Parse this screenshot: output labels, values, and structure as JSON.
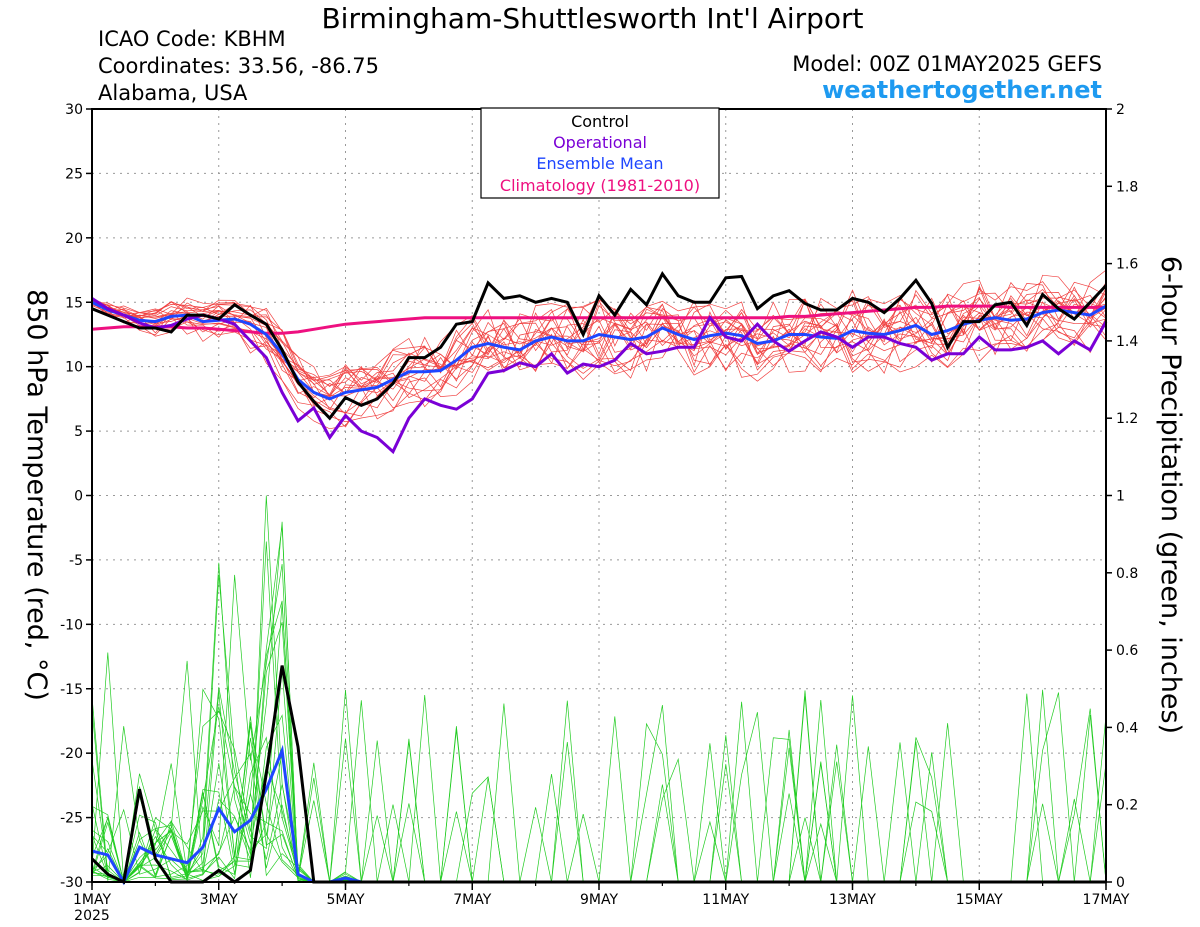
{
  "header": {
    "title": "Birmingham-Shuttlesworth Int'l Airport",
    "icao": "ICAO Code: KBHM",
    "coordinates": "Coordinates: 33.56, -86.75",
    "region": "Alabama, USA",
    "model": "Model: 00Z 01MAY2025 GEFS",
    "site": "weathertogether.net"
  },
  "colors": {
    "control": "#000000",
    "operational": "#7a00d6",
    "mean": "#1e46ff",
    "climatology": "#ee1080",
    "temp_members": "#f04040",
    "precip_members": "#22cc22",
    "site": "#1e9af0"
  },
  "chart_data": {
    "type": "line",
    "y_left": {
      "label": "850 hPa Temperature (red, °C)",
      "range": [
        -30,
        30
      ],
      "ticks": [
        -30,
        -25,
        -20,
        -15,
        -10,
        -5,
        0,
        5,
        10,
        15,
        20,
        25,
        30
      ]
    },
    "y_right": {
      "label": "6-hour Precipitation (green, inches)",
      "range": [
        0,
        2
      ],
      "ticks": [
        "0",
        "0.2",
        "0.4",
        "0.6",
        "0.8",
        "1",
        "1.2",
        "1.4",
        "1.6",
        "1.8",
        "2"
      ]
    },
    "x": {
      "range_days": [
        0,
        16
      ],
      "tick_labels": [
        "1MAY",
        "3MAY",
        "5MAY",
        "7MAY",
        "9MAY",
        "11MAY",
        "13MAY",
        "15MAY",
        "17MAY"
      ],
      "year_label": "2025"
    },
    "grid": true,
    "legend": {
      "placement": "top-center",
      "entries": [
        {
          "label": "Control",
          "color": "#000000"
        },
        {
          "label": "Operational",
          "color": "#7a00d6"
        },
        {
          "label": "Ensemble Mean",
          "color": "#1e46ff"
        },
        {
          "label": "Climatology (1981-2010)",
          "color": "#ee1080"
        }
      ]
    },
    "temperature": {
      "control": [
        14.5,
        14.0,
        13.5,
        13.0,
        13.0,
        12.7,
        14.0,
        14.0,
        13.7,
        14.8,
        14.0,
        13.3,
        11.3,
        8.8,
        7.3,
        6.0,
        7.6,
        7.0,
        7.5,
        8.7,
        10.7,
        10.7,
        11.5,
        13.3,
        13.5,
        16.5,
        15.3,
        15.5,
        15.0,
        15.3,
        15.0,
        12.5,
        15.5,
        14.0,
        16.0,
        14.8,
        17.2,
        15.5,
        15.0,
        15.0,
        16.9,
        17.0,
        14.5,
        15.5,
        15.9,
        14.9,
        14.4,
        14.4,
        15.3,
        15.0,
        14.2,
        15.3,
        16.7,
        14.9,
        11.5,
        13.5,
        13.5,
        14.8,
        15.0,
        13.2,
        15.6,
        14.5,
        13.7,
        15.0,
        16.3
      ],
      "operational": [
        15.3,
        14.5,
        14.0,
        13.4,
        13.0,
        13.2,
        13.7,
        14.0,
        13.7,
        13.3,
        12.0,
        10.7,
        8.0,
        5.8,
        6.8,
        4.5,
        6.2,
        5.0,
        4.5,
        3.4,
        6.0,
        7.5,
        7.0,
        6.7,
        7.5,
        9.5,
        9.7,
        10.3,
        10.0,
        11.0,
        9.5,
        10.2,
        10.0,
        10.5,
        11.8,
        11.0,
        11.2,
        11.5,
        11.5,
        13.8,
        12.3,
        12.0,
        13.3,
        12.0,
        11.2,
        12.0,
        12.7,
        12.3,
        11.5,
        12.3,
        12.3,
        11.8,
        11.5,
        10.5,
        11.0,
        11.0,
        12.3,
        11.3,
        11.3,
        11.5,
        12.0,
        11.0,
        12.0,
        11.3,
        13.5
      ],
      "mean": [
        15.0,
        14.4,
        14.0,
        13.6,
        13.5,
        13.9,
        14.0,
        13.5,
        13.6,
        13.7,
        13.3,
        12.5,
        11.0,
        9.0,
        8.0,
        7.5,
        8.0,
        8.2,
        8.4,
        9.0,
        9.6,
        9.6,
        9.7,
        10.5,
        11.5,
        11.8,
        11.5,
        11.3,
        12.0,
        12.3,
        12.0,
        12.0,
        12.5,
        12.3,
        12.1,
        12.3,
        13.0,
        12.5,
        12.1,
        12.4,
        12.6,
        12.4,
        11.8,
        12.0,
        12.5,
        12.5,
        12.3,
        12.2,
        12.8,
        12.6,
        12.5,
        12.8,
        13.2,
        12.5,
        12.8,
        13.3,
        13.6,
        13.8,
        13.6,
        13.7,
        14.2,
        14.4,
        14.2,
        14.0,
        14.7
      ],
      "climatology": [
        12.9,
        13.0,
        13.1,
        13.1,
        13.1,
        13.1,
        13.0,
        13.0,
        12.9,
        12.8,
        12.7,
        12.6,
        12.6,
        12.7,
        12.9,
        13.1,
        13.3,
        13.4,
        13.5,
        13.6,
        13.7,
        13.8,
        13.8,
        13.8,
        13.8,
        13.8,
        13.8,
        13.8,
        13.8,
        13.8,
        13.8,
        13.8,
        13.8,
        13.8,
        13.8,
        13.8,
        13.8,
        13.8,
        13.8,
        13.8,
        13.8,
        13.8,
        13.8,
        13.8,
        13.9,
        13.9,
        14.0,
        14.1,
        14.2,
        14.3,
        14.4,
        14.5,
        14.6,
        14.6,
        14.7,
        14.7,
        14.7,
        14.7,
        14.6,
        14.6,
        14.6,
        14.6,
        14.6,
        14.6,
        14.6
      ]
    },
    "precipitation": {
      "control": [
        0.06,
        0.02,
        0.0,
        0.24,
        0.06,
        0.0,
        0.0,
        0.0,
        0.03,
        0.0,
        0.03,
        0.28,
        0.56,
        0.35,
        0.0,
        0.0,
        0.0,
        0.0,
        0.0,
        0.0,
        0.0,
        0.0,
        0.0,
        0.0,
        0.0,
        0.0,
        0.0,
        0.0,
        0.0,
        0.0,
        0.0,
        0.0,
        0.0,
        0.0,
        0.0,
        0.0,
        0.0,
        0.0,
        0.0,
        0.0,
        0.0,
        0.0,
        0.0,
        0.0,
        0.0,
        0.0,
        0.0,
        0.0,
        0.0,
        0.0,
        0.0,
        0.0,
        0.0,
        0.0,
        0.0,
        0.0,
        0.0,
        0.0,
        0.0,
        0.0,
        0.0,
        0.0,
        0.0,
        0.0,
        0.0
      ],
      "mean": [
        0.08,
        0.07,
        0.0,
        0.09,
        0.07,
        0.06,
        0.05,
        0.09,
        0.19,
        0.13,
        0.16,
        0.24,
        0.34,
        0.02,
        0.0,
        0.0,
        0.01,
        0.0,
        0.0,
        0.0,
        0.0,
        0.0,
        0.0,
        0.0,
        0.0,
        0.0,
        0.0,
        0.0,
        0.0,
        0.0,
        0.0,
        0.0,
        0.0,
        0.0,
        0.0,
        0.0,
        0.0,
        0.0,
        0.0,
        0.0,
        0.0,
        0.0,
        0.0,
        0.0,
        0.0,
        0.0,
        0.0,
        0.0,
        0.0,
        0.0,
        0.0,
        0.0,
        0.0,
        0.0,
        0.0,
        0.0,
        0.0,
        0.0,
        0.0,
        0.0,
        0.0,
        0.0,
        0.0,
        0.0,
        0.0
      ]
    }
  }
}
